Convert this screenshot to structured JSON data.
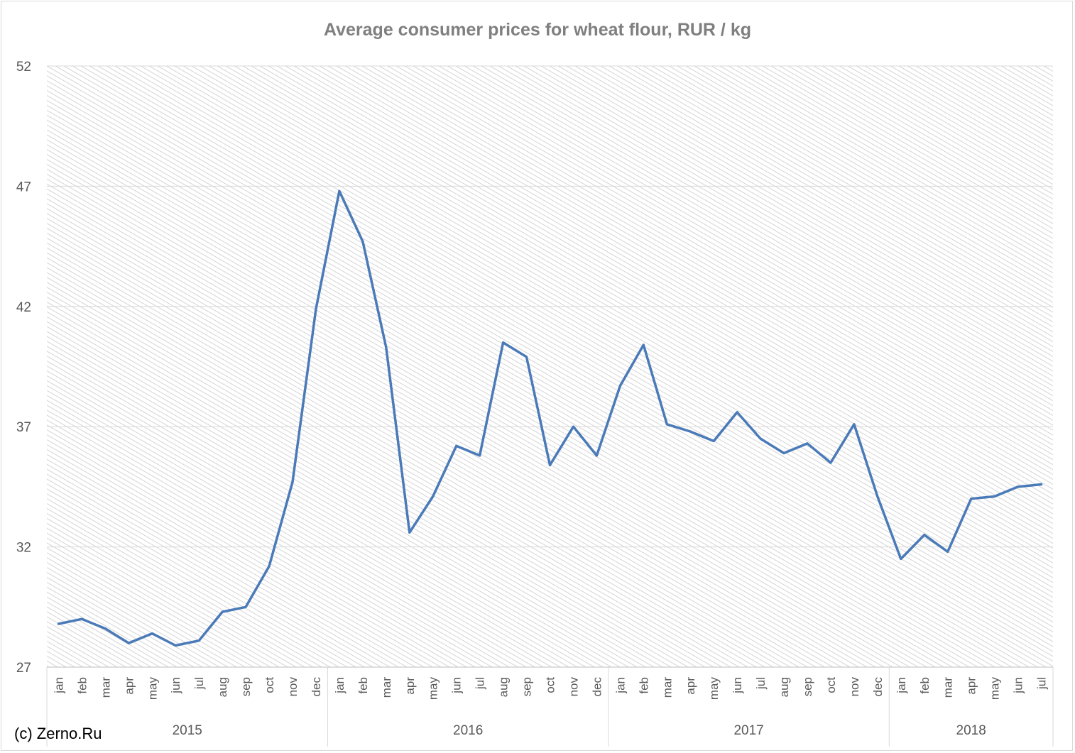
{
  "chart_data": {
    "type": "line",
    "title": "Average consumer prices for wheat flour, RUR / kg",
    "ylim": [
      27,
      52
    ],
    "yticks": [
      "27",
      "32",
      "37",
      "42",
      "47",
      "52"
    ],
    "groups": [
      {
        "label": "2015",
        "months": [
          "jan",
          "feb",
          "mar",
          "apr",
          "may",
          "jun",
          "jul",
          "aug",
          "sep",
          "oct",
          "nov",
          "dec"
        ]
      },
      {
        "label": "2016",
        "months": [
          "jan",
          "feb",
          "mar",
          "apr",
          "may",
          "jun",
          "jul",
          "aug",
          "sep",
          "oct",
          "nov",
          "dec"
        ]
      },
      {
        "label": "2017",
        "months": [
          "jan",
          "feb",
          "mar",
          "apr",
          "may",
          "jun",
          "jul",
          "aug",
          "sep",
          "oct",
          "nov",
          "dec"
        ]
      },
      {
        "label": "2018",
        "months": [
          "jan",
          "feb",
          "mar",
          "apr",
          "may",
          "jun",
          "jul"
        ]
      }
    ],
    "series": [
      {
        "color": "#4a7ab8",
        "values": [
          28.8,
          29.0,
          28.6,
          28.0,
          28.4,
          27.9,
          28.1,
          29.3,
          29.5,
          31.2,
          34.7,
          41.9,
          46.8,
          44.7,
          40.3,
          32.6,
          34.1,
          36.2,
          35.8,
          40.5,
          39.9,
          35.4,
          37.0,
          35.8,
          38.7,
          40.4,
          37.1,
          36.8,
          36.4,
          37.6,
          36.5,
          35.9,
          36.3,
          35.5,
          37.1,
          34.1,
          31.5,
          32.5,
          31.8,
          34.0,
          34.1,
          34.5,
          34.6
        ]
      }
    ],
    "grid": true,
    "legend": "none"
  },
  "footer": {
    "copyright": "(c) Zerno.Ru"
  }
}
